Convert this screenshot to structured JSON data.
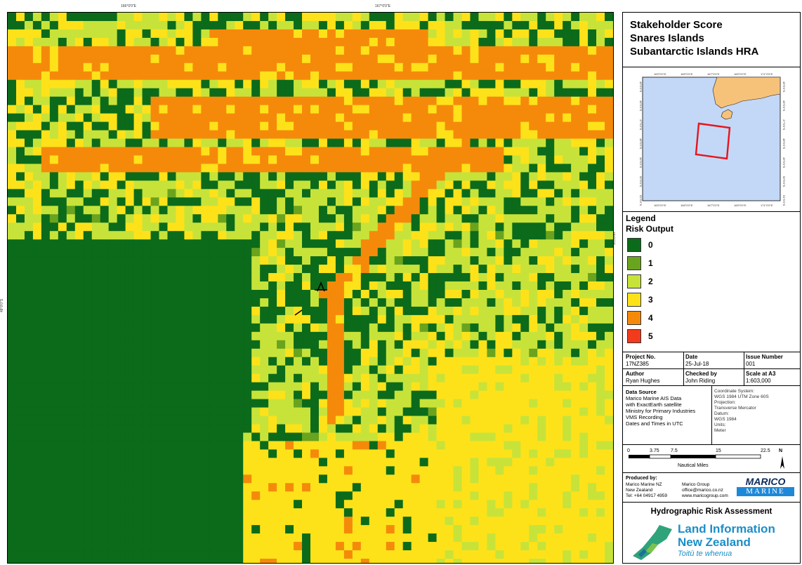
{
  "map": {
    "top_ticks": [
      "166°0'0\"E",
      "167°0'0\"E"
    ],
    "left_tick": "48°0'0\"S",
    "right_tick": "48°0'0\"S",
    "colors": {
      "level0": "#0b6b1a",
      "level1": "#6aa31e",
      "level2": "#c7e33a",
      "level3": "#fde21a",
      "level4": "#f58a0a",
      "level5": "#f23b1c"
    }
  },
  "title": {
    "line1": "Stakeholder Score",
    "line2": "Snares Islands",
    "line3": "Subantarctic Islands HRA"
  },
  "inset": {
    "top_ticks": [
      "163°0'0\"E",
      "165°0'0\"E",
      "167°0'0\"E",
      "169°0'0\"E",
      "171°0'0\"E"
    ],
    "bottom_ticks": [
      "163°0'0\"E",
      "165°0'0\"E",
      "167°0'0\"E",
      "169°0'0\"E",
      "171°0'0\"E"
    ],
    "left_ticks": [
      "45°0'0\"S",
      "46°0'0\"S",
      "47°0'0\"S",
      "48°0'0\"S",
      "49°0'0\"S",
      "50°0'0\"S",
      "51°0'0\"S"
    ],
    "right_ticks": [
      "45°0'0\"S",
      "46°0'0\"S",
      "47°0'0\"S",
      "48°0'0\"S",
      "49°0'0\"S",
      "50°0'0\"S",
      "51°0'0\"S"
    ],
    "sea_color": "#c3d8f6",
    "land_color": "#f6c27a",
    "frame_color": "#e8141c"
  },
  "legend": {
    "title": "Legend",
    "subtitle": "Risk Output",
    "items": [
      {
        "label": "0",
        "color": "#0b6b1a"
      },
      {
        "label": "1",
        "color": "#6aa31e"
      },
      {
        "label": "2",
        "color": "#c7e33a"
      },
      {
        "label": "3",
        "color": "#fde21a"
      },
      {
        "label": "4",
        "color": "#f58a0a"
      },
      {
        "label": "5",
        "color": "#f23b1c"
      }
    ]
  },
  "meta": {
    "project_no_label": "Project No.",
    "project_no": "17NZ385",
    "date_label": "Date",
    "date": "25-Jul-18",
    "issue_label": "Issue Number",
    "issue": "001",
    "author_label": "Author",
    "author": "Ryan Hughes",
    "checked_label": "Checked by",
    "checked": "John Riding",
    "scale_label": "Scale at A3",
    "scale": "1:603,000"
  },
  "data_source": {
    "heading": "Data Source",
    "lines": [
      "Marico Marine AIS Data",
      "with ExactEarth satellite",
      "Ministry for Primary Industries",
      "VMS Recording",
      "Dates and Times in UTC"
    ],
    "coord_lines": [
      "Coordinate System:",
      "WGS 1984 UTM Zone 60S",
      "Projection:",
      "Transverse Mercator",
      "Datum:",
      "WGS 1984",
      "Units:",
      "Meter"
    ]
  },
  "scale_bar": {
    "ticks": [
      "0",
      "3.75",
      "7.5",
      "15",
      "22.5"
    ],
    "unit": "Nautical Miles",
    "north": "N"
  },
  "produced": {
    "heading": "Produced by:",
    "col1": [
      "Marico Marine NZ",
      "New Zealand",
      "Tel: +64 04917 4959"
    ],
    "col2": [
      "Marico Group",
      "office@marico.co.nz",
      "www.maricogroup.com"
    ],
    "logo_top": "MARICO",
    "logo_bottom": "MARINE"
  },
  "footer": {
    "hra_title": "Hydrographic Risk Assessment",
    "linz_line1": "Land Information",
    "linz_line2": "New Zealand",
    "linz_line3": "Toitū te whenua"
  }
}
